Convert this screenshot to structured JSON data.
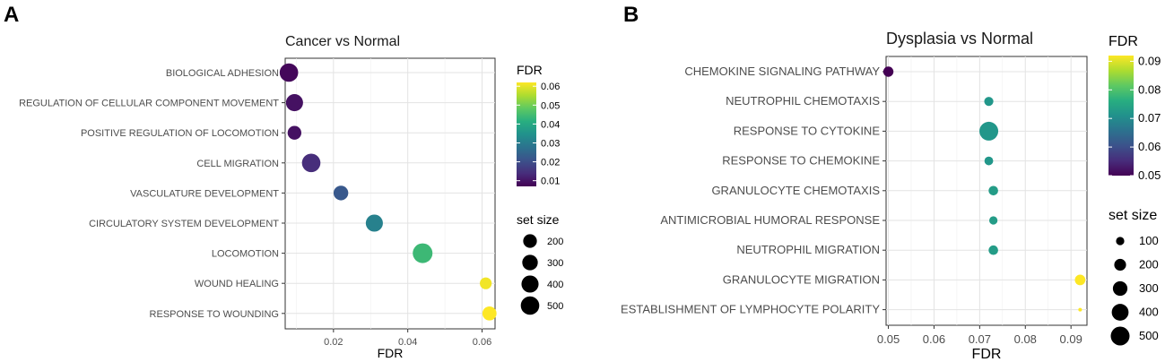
{
  "chart_data": [
    {
      "panel_label": "A",
      "type": "scatter",
      "title": "Cancer vs Normal",
      "xlabel": "FDR",
      "ylabel": "",
      "xlim": [
        0.007,
        0.0635
      ],
      "xticks": [
        0.02,
        0.04,
        0.06
      ],
      "xtick_labels": [
        "0.02",
        "0.04",
        "0.06"
      ],
      "grid": true,
      "categories": [
        "BIOLOGICAL ADHESION",
        "REGULATION OF CELLULAR COMPONENT MOVEMENT",
        "POSITIVE REGULATION OF LOCOMOTION",
        "CELL MIGRATION",
        "VASCULATURE DEVELOPMENT",
        "CIRCULATORY SYSTEM DEVELOPMENT",
        "LOCOMOTION",
        "WOUND HEALING",
        "RESPONSE TO WOUNDING"
      ],
      "fdr": [
        0.008,
        0.0095,
        0.0095,
        0.014,
        0.022,
        0.031,
        0.044,
        0.061,
        0.062
      ],
      "set_size": [
        500,
        400,
        200,
        500,
        250,
        400,
        600,
        120,
        220
      ],
      "color_legend": {
        "title": "FDR",
        "min": 0.007,
        "max": 0.062,
        "ticks": [
          0.06,
          0.05,
          0.04,
          0.03,
          0.02,
          0.01
        ],
        "tick_labels": [
          "0.06",
          "0.05",
          "0.04",
          "0.03",
          "0.02",
          "0.01"
        ]
      },
      "size_legend": {
        "title": "set size",
        "values": [
          200,
          300,
          400,
          500
        ],
        "labels": [
          "200",
          "300",
          "400",
          "500"
        ]
      }
    },
    {
      "panel_label": "B",
      "type": "scatter",
      "title": "Dysplasia vs Normal",
      "xlabel": "FDR",
      "ylabel": "",
      "xlim": [
        0.0495,
        0.0935
      ],
      "xticks": [
        0.05,
        0.06,
        0.07,
        0.08,
        0.09
      ],
      "xtick_labels": [
        "0.05",
        "0.06",
        "0.07",
        "0.08",
        "0.09"
      ],
      "grid": true,
      "categories": [
        "CHEMOKINE SIGNALING PATHWAY",
        "NEUTROPHIL CHEMOTAXIS",
        "RESPONSE TO CYTOKINE",
        "RESPONSE TO CHEMOKINE",
        "GRANULOCYTE CHEMOTAXIS",
        "ANTIMICROBIAL HUMORAL RESPONSE",
        "NEUTROPHIL MIGRATION",
        "GRANULOCYTE MIGRATION",
        "ESTABLISHMENT OF LYMPHOCYTE POLARITY"
      ],
      "fdr": [
        0.05,
        0.072,
        0.072,
        0.072,
        0.073,
        0.073,
        0.073,
        0.092,
        0.092
      ],
      "set_size": [
        150,
        120,
        500,
        110,
        130,
        100,
        130,
        160,
        20
      ],
      "color_legend": {
        "title": "FDR",
        "min": 0.05,
        "max": 0.092,
        "ticks": [
          0.09,
          0.08,
          0.07,
          0.06,
          0.05
        ],
        "tick_labels": [
          "0.09",
          "0.08",
          "0.07",
          "0.06",
          "0.05"
        ]
      },
      "size_legend": {
        "title": "set size",
        "values": [
          100,
          200,
          300,
          400,
          500
        ],
        "labels": [
          "100",
          "200",
          "300",
          "400",
          "500"
        ]
      }
    }
  ]
}
